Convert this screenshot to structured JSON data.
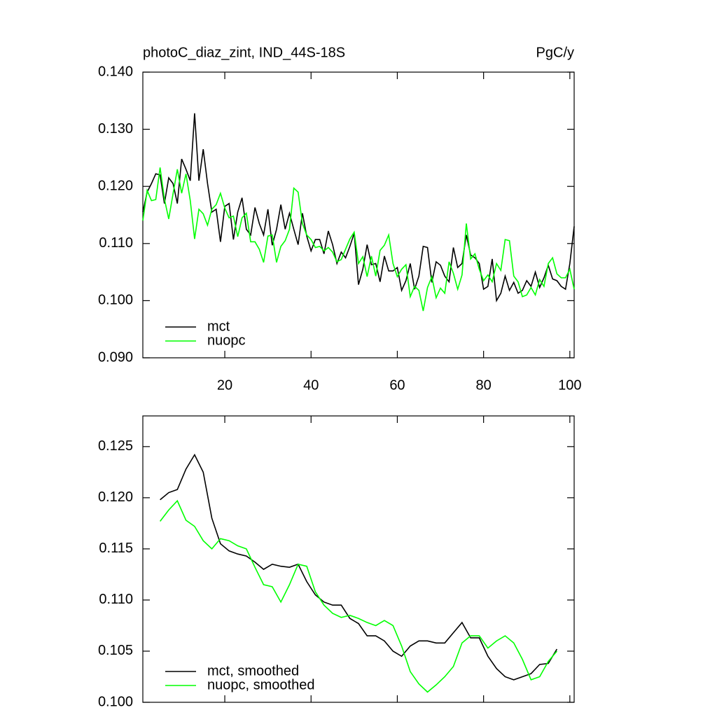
{
  "chart_data": [
    {
      "type": "line",
      "title": "photoC_diaz_zint, IND_44S-18S",
      "units_label": "PgC/y",
      "x": [
        1,
        2,
        3,
        4,
        5,
        6,
        7,
        8,
        9,
        10,
        11,
        12,
        13,
        14,
        15,
        16,
        17,
        18,
        19,
        20,
        21,
        22,
        23,
        24,
        25,
        26,
        27,
        28,
        29,
        30,
        31,
        32,
        33,
        34,
        35,
        36,
        37,
        38,
        39,
        40,
        41,
        42,
        43,
        44,
        45,
        46,
        47,
        48,
        49,
        50,
        51,
        52,
        53,
        54,
        55,
        56,
        57,
        58,
        59,
        60,
        61,
        62,
        63,
        64,
        65,
        66,
        67,
        68,
        69,
        70,
        71,
        72,
        73,
        74,
        75,
        76,
        77,
        78,
        79,
        80,
        81,
        82,
        83,
        84,
        85,
        86,
        87,
        88,
        89,
        90,
        91,
        92,
        93,
        94,
        95,
        96,
        97,
        98,
        99,
        100,
        101
      ],
      "series": [
        {
          "name": "mct",
          "color": "#000000",
          "values": [
            0.1155,
            0.119,
            0.1205,
            0.1222,
            0.122,
            0.117,
            0.1215,
            0.1205,
            0.117,
            0.1248,
            0.123,
            0.121,
            0.1328,
            0.121,
            0.1265,
            0.1205,
            0.1155,
            0.116,
            0.1103,
            0.1165,
            0.117,
            0.1107,
            0.1155,
            0.118,
            0.1125,
            0.1115,
            0.1163,
            0.1135,
            0.1115,
            0.116,
            0.1097,
            0.1125,
            0.1168,
            0.1125,
            0.1153,
            0.1125,
            0.1098,
            0.1153,
            0.1113,
            0.1087,
            0.1107,
            0.1107,
            0.1082,
            0.1122,
            0.1098,
            0.1065,
            0.1085,
            0.1075,
            0.1095,
            0.1118,
            0.1028,
            0.1055,
            0.1098,
            0.1063,
            0.1065,
            0.1033,
            0.1078,
            0.1052,
            0.1052,
            0.1058,
            0.1018,
            0.1035,
            0.1065,
            0.102,
            0.1043,
            0.1095,
            0.1093,
            0.1032,
            0.1068,
            0.1062,
            0.1043,
            0.1033,
            0.1093,
            0.1058,
            0.1065,
            0.1115,
            0.108,
            0.1075,
            0.1065,
            0.102,
            0.1025,
            0.1073,
            0.1,
            0.1013,
            0.1043,
            0.1018,
            0.1032,
            0.1013,
            0.1018,
            0.1035,
            0.1025,
            0.105,
            0.1023,
            0.104,
            0.1062,
            0.1038,
            0.1035,
            0.1025,
            0.102,
            0.1065,
            0.113
          ]
        },
        {
          "name": "nuopc",
          "color": "#00ff00",
          "values": [
            0.114,
            0.1193,
            0.1175,
            0.1177,
            0.1233,
            0.1178,
            0.1143,
            0.1187,
            0.123,
            0.1188,
            0.1222,
            0.1175,
            0.1108,
            0.116,
            0.1152,
            0.1132,
            0.116,
            0.1168,
            0.1188,
            0.1162,
            0.1145,
            0.1148,
            0.1112,
            0.1145,
            0.1153,
            0.1103,
            0.1103,
            0.109,
            0.1067,
            0.1113,
            0.1115,
            0.1067,
            0.1095,
            0.1105,
            0.1125,
            0.1197,
            0.119,
            0.1135,
            0.1115,
            0.1107,
            0.1093,
            0.1095,
            0.1087,
            0.1093,
            0.1085,
            0.1068,
            0.1072,
            0.109,
            0.1108,
            0.112,
            0.1065,
            0.1077,
            0.1042,
            0.1078,
            0.1043,
            0.1088,
            0.1097,
            0.1115,
            0.1065,
            0.1042,
            0.1055,
            0.1063,
            0.1007,
            0.1025,
            0.1018,
            0.0982,
            0.1023,
            0.1042,
            0.1005,
            0.1022,
            0.1013,
            0.1068,
            0.1048,
            0.102,
            0.1045,
            0.1135,
            0.1073,
            0.1082,
            0.1055,
            0.1035,
            0.1045,
            0.1033,
            0.1065,
            0.1053,
            0.1107,
            0.1105,
            0.1043,
            0.1033,
            0.1007,
            0.101,
            0.1023,
            0.101,
            0.1037,
            0.1025,
            0.1065,
            0.1075,
            0.1047,
            0.104,
            0.104,
            0.1055,
            0.102
          ]
        }
      ],
      "xlim": [
        1,
        101
      ],
      "xticks": [
        20,
        40,
        60,
        80,
        100
      ],
      "ylim": [
        0.09,
        0.14
      ],
      "yticks": [
        {
          "value": 0.09,
          "label": "0.090"
        },
        {
          "value": 0.1,
          "label": "0.100"
        },
        {
          "value": 0.11,
          "label": "0.110"
        },
        {
          "value": 0.12,
          "label": "0.120"
        },
        {
          "value": 0.13,
          "label": "0.130"
        },
        {
          "value": 0.14,
          "label": "0.140"
        }
      ],
      "legend": "lower left"
    },
    {
      "type": "line",
      "x": [
        5,
        7,
        9,
        11,
        13,
        15,
        17,
        19,
        21,
        23,
        25,
        27,
        29,
        31,
        33,
        35,
        37,
        39,
        41,
        43,
        45,
        47,
        49,
        51,
        53,
        55,
        57,
        59,
        61,
        63,
        65,
        67,
        69,
        71,
        73,
        75,
        77,
        79,
        81,
        83,
        85,
        87,
        89,
        91,
        93,
        95,
        97
      ],
      "series": [
        {
          "name": "mct, smoothed",
          "color": "#000000",
          "values": [
            0.1198,
            0.1205,
            0.1208,
            0.1228,
            0.1242,
            0.1225,
            0.118,
            0.1155,
            0.1148,
            0.1145,
            0.1143,
            0.1137,
            0.113,
            0.1135,
            0.1133,
            0.1132,
            0.1135,
            0.1118,
            0.1105,
            0.1098,
            0.1095,
            0.1095,
            0.1082,
            0.1077,
            0.1065,
            0.1065,
            0.106,
            0.105,
            0.1045,
            0.1055,
            0.106,
            0.106,
            0.1058,
            0.1058,
            0.1068,
            0.1078,
            0.1063,
            0.1063,
            0.1045,
            0.1033,
            0.1025,
            0.1022,
            0.1025,
            0.1028,
            0.1037,
            0.1038,
            0.1052
          ]
        },
        {
          "name": "nuopc, smoothed",
          "color": "#00ff00",
          "values": [
            0.1177,
            0.1188,
            0.1197,
            0.1178,
            0.1172,
            0.1158,
            0.115,
            0.116,
            0.1158,
            0.1153,
            0.115,
            0.1132,
            0.1115,
            0.1113,
            0.1098,
            0.1115,
            0.1135,
            0.1133,
            0.1108,
            0.1095,
            0.1087,
            0.1083,
            0.1085,
            0.1082,
            0.1078,
            0.1075,
            0.108,
            0.1075,
            0.1055,
            0.103,
            0.1018,
            0.101,
            0.1017,
            0.1025,
            0.1035,
            0.1058,
            0.1065,
            0.1065,
            0.1053,
            0.106,
            0.1065,
            0.1058,
            0.1042,
            0.1022,
            0.1025,
            0.104,
            0.105
          ]
        }
      ],
      "xlim": [
        1,
        101
      ],
      "xticks": [
        20,
        40,
        60,
        80,
        100
      ],
      "ylim": [
        0.1,
        0.128
      ],
      "yticks": [
        {
          "value": 0.1,
          "label": "0.100"
        },
        {
          "value": 0.105,
          "label": "0.105"
        },
        {
          "value": 0.11,
          "label": "0.110"
        },
        {
          "value": 0.115,
          "label": "0.115"
        },
        {
          "value": 0.12,
          "label": "0.120"
        },
        {
          "value": 0.125,
          "label": "0.125"
        }
      ],
      "legend": "lower left"
    }
  ]
}
